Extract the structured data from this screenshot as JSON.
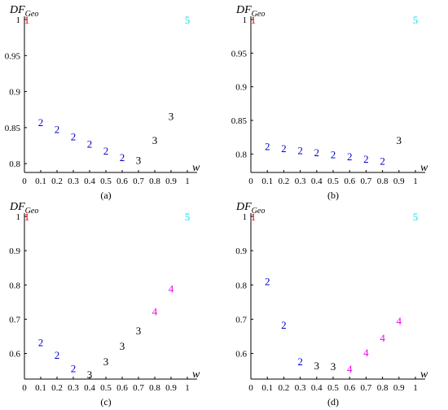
{
  "chart_data": [
    {
      "type": "scatter",
      "caption": "(a)",
      "ylabel_main": "DF",
      "ylabel_sub": "Geo",
      "xlabel": "w",
      "xlim": [
        0,
        1
      ],
      "ylim": [
        0.79,
        1.0
      ],
      "xticks": [
        0,
        0.1,
        0.2,
        0.3,
        0.4,
        0.5,
        0.6,
        0.7,
        0.8,
        0.9,
        1
      ],
      "yticks": [
        0.8,
        0.85,
        0.9,
        0.95,
        1
      ],
      "ytick_labels": [
        "0.8",
        "0.85",
        "0.9",
        "0.95",
        "1"
      ],
      "points": [
        {
          "x": 0.0,
          "y": 1.0,
          "label": "1",
          "color": "#ff0000"
        },
        {
          "x": 0.1,
          "y": 0.858,
          "label": "2",
          "color": "#0000cc"
        },
        {
          "x": 0.2,
          "y": 0.848,
          "label": "2",
          "color": "#0000cc"
        },
        {
          "x": 0.3,
          "y": 0.838,
          "label": "2",
          "color": "#0000cc"
        },
        {
          "x": 0.4,
          "y": 0.828,
          "label": "2",
          "color": "#0000cc"
        },
        {
          "x": 0.5,
          "y": 0.818,
          "label": "2",
          "color": "#0000cc"
        },
        {
          "x": 0.6,
          "y": 0.809,
          "label": "2",
          "color": "#0000cc"
        },
        {
          "x": 0.7,
          "y": 0.805,
          "label": "3",
          "color": "#000000"
        },
        {
          "x": 0.8,
          "y": 0.833,
          "label": "3",
          "color": "#000000"
        },
        {
          "x": 0.9,
          "y": 0.866,
          "label": "3",
          "color": "#000000"
        },
        {
          "x": 1.0,
          "y": 1.0,
          "label": "5",
          "color": "#00e5ee"
        }
      ]
    },
    {
      "type": "scatter",
      "caption": "(b)",
      "ylabel_main": "DF",
      "ylabel_sub": "Geo",
      "xlabel": "w",
      "xlim": [
        0,
        1
      ],
      "ylim": [
        0.775,
        1.0
      ],
      "xticks": [
        0,
        0.1,
        0.2,
        0.3,
        0.4,
        0.5,
        0.6,
        0.7,
        0.8,
        0.9,
        1
      ],
      "yticks": [
        0.8,
        0.85,
        0.9,
        0.95,
        1
      ],
      "ytick_labels": [
        "0.8",
        "0.85",
        "0.9",
        "0.95",
        "1"
      ],
      "points": [
        {
          "x": 0.0,
          "y": 1.0,
          "label": "1",
          "color": "#ff0000"
        },
        {
          "x": 0.1,
          "y": 0.812,
          "label": "2",
          "color": "#0000cc"
        },
        {
          "x": 0.2,
          "y": 0.809,
          "label": "2",
          "color": "#0000cc"
        },
        {
          "x": 0.3,
          "y": 0.806,
          "label": "2",
          "color": "#0000cc"
        },
        {
          "x": 0.4,
          "y": 0.803,
          "label": "2",
          "color": "#0000cc"
        },
        {
          "x": 0.5,
          "y": 0.8,
          "label": "2",
          "color": "#0000cc"
        },
        {
          "x": 0.6,
          "y": 0.797,
          "label": "2",
          "color": "#0000cc"
        },
        {
          "x": 0.7,
          "y": 0.793,
          "label": "2",
          "color": "#0000cc"
        },
        {
          "x": 0.8,
          "y": 0.79,
          "label": "2",
          "color": "#0000cc"
        },
        {
          "x": 0.9,
          "y": 0.821,
          "label": "3",
          "color": "#000000"
        },
        {
          "x": 1.0,
          "y": 1.0,
          "label": "5",
          "color": "#00e5ee"
        }
      ]
    },
    {
      "type": "scatter",
      "caption": "(c)",
      "ylabel_main": "DF",
      "ylabel_sub": "Geo",
      "xlabel": "w",
      "xlim": [
        0,
        1
      ],
      "ylim": [
        0.53,
        1.0
      ],
      "xticks": [
        0,
        0.1,
        0.2,
        0.3,
        0.4,
        0.5,
        0.6,
        0.7,
        0.8,
        0.9,
        1
      ],
      "yticks": [
        0.6,
        0.7,
        0.8,
        0.9,
        1
      ],
      "ytick_labels": [
        "0.6",
        "0.7",
        "0.8",
        "0.9",
        "1"
      ],
      "points": [
        {
          "x": 0.0,
          "y": 1.0,
          "label": "1",
          "color": "#ff0000"
        },
        {
          "x": 0.1,
          "y": 0.633,
          "label": "2",
          "color": "#0000cc"
        },
        {
          "x": 0.2,
          "y": 0.596,
          "label": "2",
          "color": "#0000cc"
        },
        {
          "x": 0.3,
          "y": 0.557,
          "label": "2",
          "color": "#0000cc"
        },
        {
          "x": 0.4,
          "y": 0.54,
          "label": "3",
          "color": "#000000"
        },
        {
          "x": 0.5,
          "y": 0.577,
          "label": "3",
          "color": "#000000"
        },
        {
          "x": 0.6,
          "y": 0.622,
          "label": "3",
          "color": "#000000"
        },
        {
          "x": 0.7,
          "y": 0.668,
          "label": "3",
          "color": "#000000"
        },
        {
          "x": 0.8,
          "y": 0.724,
          "label": "4",
          "color": "#ee00ee"
        },
        {
          "x": 0.9,
          "y": 0.79,
          "label": "4",
          "color": "#ee00ee"
        },
        {
          "x": 1.0,
          "y": 1.0,
          "label": "5",
          "color": "#00e5ee"
        }
      ]
    },
    {
      "type": "scatter",
      "caption": "(d)",
      "ylabel_main": "DF",
      "ylabel_sub": "Geo",
      "xlabel": "w",
      "xlim": [
        0,
        1
      ],
      "ylim": [
        0.53,
        1.0
      ],
      "xticks": [
        0,
        0.1,
        0.2,
        0.3,
        0.4,
        0.5,
        0.6,
        0.7,
        0.8,
        0.9,
        1
      ],
      "yticks": [
        0.6,
        0.7,
        0.8,
        0.9,
        1
      ],
      "ytick_labels": [
        "0.6",
        "0.7",
        "0.8",
        "0.9",
        "1"
      ],
      "points": [
        {
          "x": 0.0,
          "y": 1.0,
          "label": "1",
          "color": "#ff0000"
        },
        {
          "x": 0.1,
          "y": 0.811,
          "label": "2",
          "color": "#0000cc"
        },
        {
          "x": 0.2,
          "y": 0.684,
          "label": "2",
          "color": "#0000cc"
        },
        {
          "x": 0.3,
          "y": 0.577,
          "label": "2",
          "color": "#0000cc"
        },
        {
          "x": 0.4,
          "y": 0.566,
          "label": "3",
          "color": "#000000"
        },
        {
          "x": 0.5,
          "y": 0.563,
          "label": "3",
          "color": "#000000"
        },
        {
          "x": 0.6,
          "y": 0.556,
          "label": "4",
          "color": "#ee00ee"
        },
        {
          "x": 0.7,
          "y": 0.604,
          "label": "4",
          "color": "#ee00ee"
        },
        {
          "x": 0.8,
          "y": 0.646,
          "label": "4",
          "color": "#ee00ee"
        },
        {
          "x": 0.9,
          "y": 0.696,
          "label": "4",
          "color": "#ee00ee"
        },
        {
          "x": 1.0,
          "y": 1.0,
          "label": "5",
          "color": "#00e5ee"
        }
      ]
    }
  ]
}
